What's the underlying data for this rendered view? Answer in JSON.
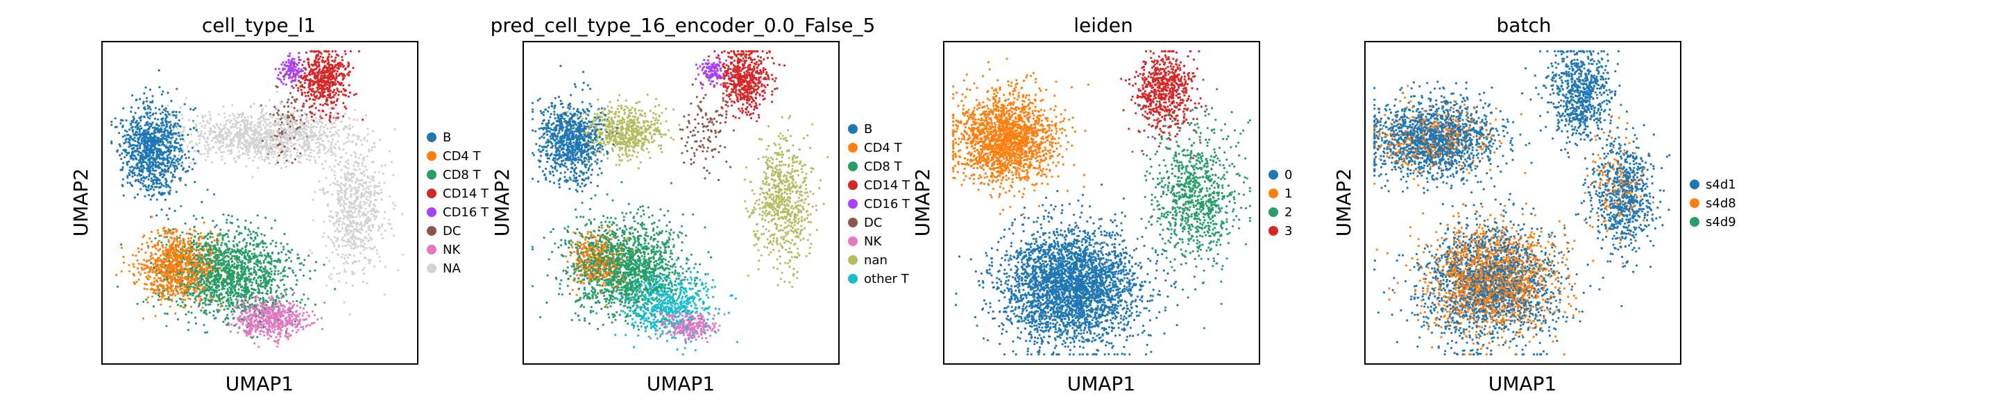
{
  "chart_data": [
    {
      "type": "scatter",
      "title": "cell_type_l1",
      "xlabel": "UMAP1",
      "ylabel": "UMAP2",
      "grid": false,
      "legend_position": "right",
      "categories": [
        {
          "name": "B",
          "color": "#1f77b4"
        },
        {
          "name": "CD4 T",
          "color": "#ff7f0e"
        },
        {
          "name": "CD8 T",
          "color": "#279e68"
        },
        {
          "name": "CD14 T",
          "color": "#d62728"
        },
        {
          "name": "CD16 T",
          "color": "#aa40fc"
        },
        {
          "name": "DC",
          "color": "#8c564b"
        },
        {
          "name": "NK",
          "color": "#e377c2"
        },
        {
          "name": "NA",
          "color": "#d3d3d3"
        }
      ],
      "clusters": [
        {
          "category": "NA",
          "cx": 0.52,
          "cy": 0.29,
          "sx": 0.13,
          "sy": 0.04,
          "n": 1100
        },
        {
          "category": "NA",
          "cx": 0.8,
          "cy": 0.52,
          "sx": 0.05,
          "sy": 0.1,
          "n": 650
        },
        {
          "category": "B",
          "cx": 0.16,
          "cy": 0.33,
          "sx": 0.05,
          "sy": 0.07,
          "n": 1000
        },
        {
          "category": "CD14 T",
          "cx": 0.7,
          "cy": 0.12,
          "sx": 0.04,
          "sy": 0.05,
          "n": 550
        },
        {
          "category": "CD16 T",
          "cx": 0.6,
          "cy": 0.09,
          "sx": 0.02,
          "sy": 0.02,
          "n": 120
        },
        {
          "category": "DC",
          "cx": 0.58,
          "cy": 0.25,
          "sx": 0.03,
          "sy": 0.06,
          "n": 90
        },
        {
          "category": "CD4 T",
          "cx": 0.24,
          "cy": 0.7,
          "sx": 0.06,
          "sy": 0.05,
          "n": 900
        },
        {
          "category": "CD8 T",
          "cx": 0.4,
          "cy": 0.72,
          "sx": 0.1,
          "sy": 0.07,
          "n": 1500
        },
        {
          "category": "NK",
          "cx": 0.53,
          "cy": 0.86,
          "sx": 0.06,
          "sy": 0.03,
          "n": 550
        }
      ]
    },
    {
      "type": "scatter",
      "title": "pred_cell_type_16_encoder_0.0_False_5",
      "xlabel": "UMAP1",
      "ylabel": "UMAP2",
      "grid": false,
      "legend_position": "right",
      "categories": [
        {
          "name": "B",
          "color": "#1f77b4"
        },
        {
          "name": "CD4 T",
          "color": "#ff7f0e"
        },
        {
          "name": "CD8 T",
          "color": "#279e68"
        },
        {
          "name": "CD14 T",
          "color": "#d62728"
        },
        {
          "name": "CD16 T",
          "color": "#aa40fc"
        },
        {
          "name": "DC",
          "color": "#8c564b"
        },
        {
          "name": "NK",
          "color": "#e377c2"
        },
        {
          "name": "nan",
          "color": "#b5bd61"
        },
        {
          "name": "other T",
          "color": "#17becf"
        }
      ],
      "clusters": [
        {
          "category": "B",
          "cx": 0.15,
          "cy": 0.31,
          "sx": 0.05,
          "sy": 0.06,
          "n": 900
        },
        {
          "category": "nan",
          "cx": 0.32,
          "cy": 0.28,
          "sx": 0.06,
          "sy": 0.04,
          "n": 600
        },
        {
          "category": "nan",
          "cx": 0.82,
          "cy": 0.5,
          "sx": 0.05,
          "sy": 0.1,
          "n": 650
        },
        {
          "category": "CD14 T",
          "cx": 0.7,
          "cy": 0.12,
          "sx": 0.04,
          "sy": 0.05,
          "n": 550
        },
        {
          "category": "CD16 T",
          "cx": 0.6,
          "cy": 0.09,
          "sx": 0.02,
          "sy": 0.02,
          "n": 110
        },
        {
          "category": "DC",
          "cx": 0.58,
          "cy": 0.28,
          "sx": 0.04,
          "sy": 0.07,
          "n": 120
        },
        {
          "category": "CD8 T",
          "cx": 0.32,
          "cy": 0.7,
          "sx": 0.09,
          "sy": 0.07,
          "n": 1500
        },
        {
          "category": "CD4 T",
          "cx": 0.23,
          "cy": 0.68,
          "sx": 0.04,
          "sy": 0.04,
          "n": 350
        },
        {
          "category": "other T",
          "cx": 0.46,
          "cy": 0.82,
          "sx": 0.07,
          "sy": 0.05,
          "n": 600
        },
        {
          "category": "NK",
          "cx": 0.53,
          "cy": 0.88,
          "sx": 0.04,
          "sy": 0.02,
          "n": 250
        }
      ]
    },
    {
      "type": "scatter",
      "title": "leiden",
      "xlabel": "UMAP1",
      "ylabel": "UMAP2",
      "grid": false,
      "legend_position": "right",
      "categories": [
        {
          "name": "0",
          "color": "#1f77b4"
        },
        {
          "name": "1",
          "color": "#ff7f0e"
        },
        {
          "name": "2",
          "color": "#279e68"
        },
        {
          "name": "3",
          "color": "#d62728"
        }
      ],
      "clusters": [
        {
          "category": "1",
          "cx": 0.2,
          "cy": 0.3,
          "sx": 0.08,
          "sy": 0.07,
          "n": 1800
        },
        {
          "category": "3",
          "cx": 0.7,
          "cy": 0.15,
          "sx": 0.05,
          "sy": 0.06,
          "n": 650
        },
        {
          "category": "2",
          "cx": 0.8,
          "cy": 0.48,
          "sx": 0.07,
          "sy": 0.11,
          "n": 850
        },
        {
          "category": "0",
          "cx": 0.4,
          "cy": 0.76,
          "sx": 0.11,
          "sy": 0.09,
          "n": 3000
        }
      ]
    },
    {
      "type": "scatter",
      "title": "batch",
      "xlabel": "UMAP1",
      "ylabel": "UMAP2",
      "grid": false,
      "legend_position": "right",
      "categories": [
        {
          "name": "s4d1",
          "color": "#1f77b4"
        },
        {
          "name": "s4d8",
          "color": "#ff7f0e"
        },
        {
          "name": "s4d9",
          "color": "#279e68"
        }
      ],
      "clusters": [
        {
          "category": "s4d1",
          "cx": 0.22,
          "cy": 0.3,
          "sx": 0.1,
          "sy": 0.06,
          "n": 1500
        },
        {
          "category": "s4d1",
          "cx": 0.68,
          "cy": 0.16,
          "sx": 0.05,
          "sy": 0.07,
          "n": 700
        },
        {
          "category": "s4d1",
          "cx": 0.82,
          "cy": 0.48,
          "sx": 0.05,
          "sy": 0.09,
          "n": 700
        },
        {
          "category": "s4d1",
          "cx": 0.4,
          "cy": 0.75,
          "sx": 0.11,
          "sy": 0.09,
          "n": 1700
        },
        {
          "category": "s4d8",
          "cx": 0.4,
          "cy": 0.74,
          "sx": 0.1,
          "sy": 0.08,
          "n": 1500
        },
        {
          "category": "s4d8",
          "cx": 0.22,
          "cy": 0.3,
          "sx": 0.09,
          "sy": 0.05,
          "n": 400
        },
        {
          "category": "s4d8",
          "cx": 0.8,
          "cy": 0.45,
          "sx": 0.05,
          "sy": 0.08,
          "n": 150
        }
      ]
    }
  ]
}
